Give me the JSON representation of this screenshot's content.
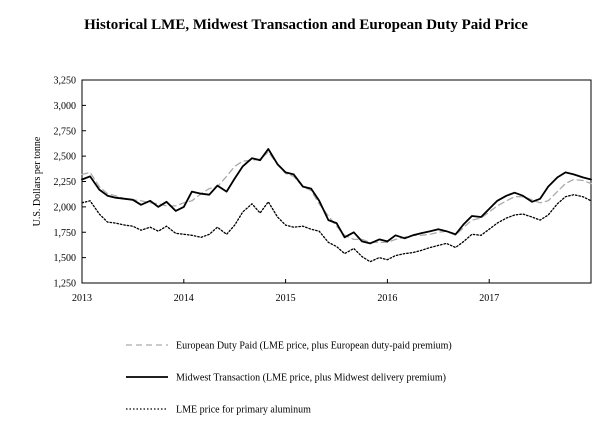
{
  "chart_data": {
    "type": "line",
    "title": "Historical LME, Midwest Transaction and European Duty Paid Price",
    "ylabel": "U.S. Dollars per tonne",
    "xlabel": "",
    "xlim": [
      2013.0,
      2018.0
    ],
    "ylim": [
      1250,
      3250
    ],
    "y_ticks": [
      1250,
      1500,
      1750,
      2000,
      2250,
      2500,
      2750,
      3000,
      3250
    ],
    "y_tick_labels": [
      "1,250",
      "1,500",
      "1,750",
      "2,000",
      "2,250",
      "2,500",
      "2,750",
      "3,000",
      "3,250"
    ],
    "x_ticks": [
      2013,
      2014,
      2015,
      2016,
      2017
    ],
    "x_tick_labels": [
      "2013",
      "2014",
      "2015",
      "2016",
      "2017"
    ],
    "grid": false,
    "legend_position": "bottom",
    "series": [
      {
        "name": "European Duty Paid (LME price, plus European duty-paid premium)",
        "style": "dashed",
        "color": "#aaaaaa",
        "points": [
          [
            2013.0,
            2320
          ],
          [
            2013.08,
            2340
          ],
          [
            2013.17,
            2200
          ],
          [
            2013.25,
            2130
          ],
          [
            2013.33,
            2110
          ],
          [
            2013.42,
            2080
          ],
          [
            2013.5,
            2070
          ],
          [
            2013.58,
            2060
          ],
          [
            2013.67,
            2040
          ],
          [
            2013.75,
            2030
          ],
          [
            2013.83,
            2010
          ],
          [
            2013.92,
            2010
          ],
          [
            2014.0,
            2040
          ],
          [
            2014.08,
            2060
          ],
          [
            2014.17,
            2130
          ],
          [
            2014.25,
            2180
          ],
          [
            2014.33,
            2200
          ],
          [
            2014.42,
            2300
          ],
          [
            2014.5,
            2400
          ],
          [
            2014.58,
            2450
          ],
          [
            2014.67,
            2460
          ],
          [
            2014.75,
            2470
          ],
          [
            2014.83,
            2540
          ],
          [
            2014.92,
            2420
          ],
          [
            2015.0,
            2330
          ],
          [
            2015.08,
            2300
          ],
          [
            2015.17,
            2200
          ],
          [
            2015.25,
            2160
          ],
          [
            2015.33,
            2030
          ],
          [
            2015.42,
            1910
          ],
          [
            2015.5,
            1810
          ],
          [
            2015.58,
            1720
          ],
          [
            2015.67,
            1680
          ],
          [
            2015.75,
            1680
          ],
          [
            2015.83,
            1650
          ],
          [
            2015.92,
            1650
          ],
          [
            2016.0,
            1650
          ],
          [
            2016.08,
            1680
          ],
          [
            2016.17,
            1700
          ],
          [
            2016.25,
            1720
          ],
          [
            2016.33,
            1720
          ],
          [
            2016.42,
            1730
          ],
          [
            2016.5,
            1750
          ],
          [
            2016.58,
            1760
          ],
          [
            2016.67,
            1720
          ],
          [
            2016.75,
            1800
          ],
          [
            2016.83,
            1870
          ],
          [
            2016.92,
            1890
          ],
          [
            2017.0,
            1950
          ],
          [
            2017.08,
            2010
          ],
          [
            2017.17,
            2060
          ],
          [
            2017.25,
            2100
          ],
          [
            2017.33,
            2100
          ],
          [
            2017.42,
            2070
          ],
          [
            2017.5,
            2040
          ],
          [
            2017.58,
            2060
          ],
          [
            2017.67,
            2150
          ],
          [
            2017.75,
            2230
          ],
          [
            2017.83,
            2270
          ],
          [
            2017.92,
            2260
          ],
          [
            2018.0,
            2230
          ]
        ]
      },
      {
        "name": "Midwest Transaction (LME price, plus Midwest delivery premium)",
        "style": "solid",
        "color": "#000000",
        "points": [
          [
            2013.0,
            2270
          ],
          [
            2013.08,
            2300
          ],
          [
            2013.17,
            2170
          ],
          [
            2013.25,
            2110
          ],
          [
            2013.33,
            2090
          ],
          [
            2013.42,
            2080
          ],
          [
            2013.5,
            2070
          ],
          [
            2013.58,
            2020
          ],
          [
            2013.67,
            2060
          ],
          [
            2013.75,
            2000
          ],
          [
            2013.83,
            2050
          ],
          [
            2013.92,
            1960
          ],
          [
            2014.0,
            2000
          ],
          [
            2014.08,
            2150
          ],
          [
            2014.17,
            2130
          ],
          [
            2014.25,
            2120
          ],
          [
            2014.33,
            2210
          ],
          [
            2014.42,
            2150
          ],
          [
            2014.5,
            2280
          ],
          [
            2014.58,
            2400
          ],
          [
            2014.67,
            2480
          ],
          [
            2014.75,
            2460
          ],
          [
            2014.83,
            2570
          ],
          [
            2014.92,
            2420
          ],
          [
            2015.0,
            2340
          ],
          [
            2015.08,
            2320
          ],
          [
            2015.17,
            2200
          ],
          [
            2015.25,
            2180
          ],
          [
            2015.33,
            2060
          ],
          [
            2015.42,
            1870
          ],
          [
            2015.5,
            1840
          ],
          [
            2015.58,
            1700
          ],
          [
            2015.67,
            1750
          ],
          [
            2015.75,
            1660
          ],
          [
            2015.83,
            1640
          ],
          [
            2015.92,
            1680
          ],
          [
            2016.0,
            1660
          ],
          [
            2016.08,
            1720
          ],
          [
            2016.17,
            1690
          ],
          [
            2016.25,
            1720
          ],
          [
            2016.33,
            1740
          ],
          [
            2016.42,
            1760
          ],
          [
            2016.5,
            1780
          ],
          [
            2016.58,
            1760
          ],
          [
            2016.67,
            1730
          ],
          [
            2016.75,
            1830
          ],
          [
            2016.83,
            1910
          ],
          [
            2016.92,
            1900
          ],
          [
            2017.0,
            1980
          ],
          [
            2017.08,
            2060
          ],
          [
            2017.17,
            2110
          ],
          [
            2017.25,
            2140
          ],
          [
            2017.33,
            2110
          ],
          [
            2017.42,
            2050
          ],
          [
            2017.5,
            2080
          ],
          [
            2017.58,
            2200
          ],
          [
            2017.67,
            2290
          ],
          [
            2017.75,
            2340
          ],
          [
            2017.83,
            2320
          ],
          [
            2017.92,
            2290
          ],
          [
            2018.0,
            2270
          ]
        ]
      },
      {
        "name": "LME price for primary aluminum",
        "style": "dotted",
        "color": "#000000",
        "points": [
          [
            2013.0,
            2040
          ],
          [
            2013.08,
            2060
          ],
          [
            2013.17,
            1930
          ],
          [
            2013.25,
            1850
          ],
          [
            2013.33,
            1840
          ],
          [
            2013.42,
            1820
          ],
          [
            2013.5,
            1810
          ],
          [
            2013.58,
            1770
          ],
          [
            2013.67,
            1800
          ],
          [
            2013.75,
            1760
          ],
          [
            2013.83,
            1810
          ],
          [
            2013.92,
            1740
          ],
          [
            2014.0,
            1730
          ],
          [
            2014.08,
            1720
          ],
          [
            2014.17,
            1700
          ],
          [
            2014.25,
            1730
          ],
          [
            2014.33,
            1800
          ],
          [
            2014.42,
            1730
          ],
          [
            2014.5,
            1820
          ],
          [
            2014.58,
            1950
          ],
          [
            2014.67,
            2030
          ],
          [
            2014.75,
            1940
          ],
          [
            2014.83,
            2050
          ],
          [
            2014.92,
            1900
          ],
          [
            2015.0,
            1820
          ],
          [
            2015.08,
            1800
          ],
          [
            2015.17,
            1810
          ],
          [
            2015.25,
            1780
          ],
          [
            2015.33,
            1760
          ],
          [
            2015.42,
            1650
          ],
          [
            2015.5,
            1610
          ],
          [
            2015.58,
            1540
          ],
          [
            2015.67,
            1590
          ],
          [
            2015.75,
            1510
          ],
          [
            2015.83,
            1460
          ],
          [
            2015.92,
            1500
          ],
          [
            2016.0,
            1480
          ],
          [
            2016.08,
            1520
          ],
          [
            2016.17,
            1540
          ],
          [
            2016.25,
            1550
          ],
          [
            2016.33,
            1570
          ],
          [
            2016.42,
            1600
          ],
          [
            2016.5,
            1620
          ],
          [
            2016.58,
            1640
          ],
          [
            2016.67,
            1600
          ],
          [
            2016.75,
            1660
          ],
          [
            2016.83,
            1730
          ],
          [
            2016.92,
            1720
          ],
          [
            2017.0,
            1780
          ],
          [
            2017.08,
            1840
          ],
          [
            2017.17,
            1890
          ],
          [
            2017.25,
            1920
          ],
          [
            2017.33,
            1930
          ],
          [
            2017.42,
            1900
          ],
          [
            2017.5,
            1870
          ],
          [
            2017.58,
            1920
          ],
          [
            2017.67,
            2030
          ],
          [
            2017.75,
            2100
          ],
          [
            2017.83,
            2120
          ],
          [
            2017.92,
            2100
          ],
          [
            2018.0,
            2060
          ]
        ]
      }
    ]
  }
}
